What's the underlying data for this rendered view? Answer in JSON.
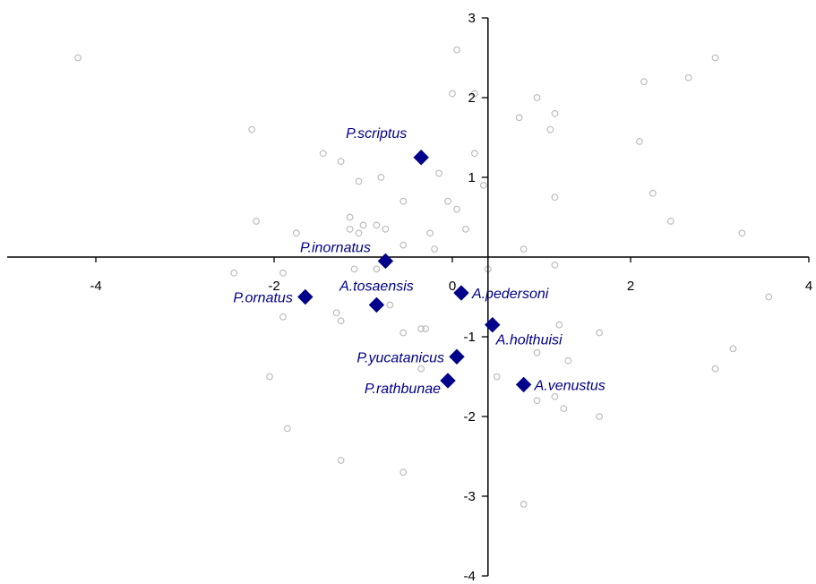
{
  "chart_data": {
    "type": "scatter",
    "title": "",
    "xlabel": "",
    "ylabel": "",
    "xlim": [
      -5,
      4
    ],
    "ylim": [
      -4,
      3
    ],
    "x_ticks": [
      -4,
      -2,
      0,
      2,
      4
    ],
    "y_ticks": [
      -4,
      -3,
      -2,
      -1,
      1,
      2,
      3
    ],
    "x_tick_labels": [
      "-4",
      "-2",
      "0",
      "2",
      "4"
    ],
    "y_tick_labels": [
      "-4",
      "-3",
      "-2",
      "-1",
      "1",
      "2",
      "3"
    ],
    "grid": false,
    "colors": {
      "background_points": "#bdbdbd",
      "highlight": "#00008b",
      "axes": "#000000"
    },
    "background_series": {
      "marker": "open-circle",
      "points": [
        [
          -4.2,
          2.5
        ],
        [
          0.05,
          2.6
        ],
        [
          2.95,
          2.5
        ],
        [
          2.65,
          2.25
        ],
        [
          2.15,
          2.2
        ],
        [
          0.0,
          2.05
        ],
        [
          0.25,
          2.05
        ],
        [
          0.95,
          2.0
        ],
        [
          0.75,
          1.75
        ],
        [
          1.15,
          1.8
        ],
        [
          1.1,
          1.6
        ],
        [
          -2.25,
          1.6
        ],
        [
          2.1,
          1.45
        ],
        [
          -1.45,
          1.3
        ],
        [
          0.25,
          1.3
        ],
        [
          -1.25,
          1.2
        ],
        [
          -0.15,
          1.05
        ],
        [
          -1.05,
          0.95
        ],
        [
          -0.8,
          1.0
        ],
        [
          0.35,
          0.9
        ],
        [
          2.25,
          0.8
        ],
        [
          1.15,
          0.75
        ],
        [
          -0.55,
          0.7
        ],
        [
          -0.05,
          0.7
        ],
        [
          0.05,
          0.6
        ],
        [
          -1.15,
          0.5
        ],
        [
          2.45,
          0.45
        ],
        [
          -2.2,
          0.45
        ],
        [
          -1.0,
          0.4
        ],
        [
          -0.85,
          0.4
        ],
        [
          -1.15,
          0.35
        ],
        [
          -0.75,
          0.35
        ],
        [
          0.15,
          0.35
        ],
        [
          -1.75,
          0.3
        ],
        [
          -0.25,
          0.3
        ],
        [
          3.25,
          0.3
        ],
        [
          -1.05,
          0.3
        ],
        [
          0.8,
          0.1
        ],
        [
          -0.55,
          0.15
        ],
        [
          -0.2,
          0.1
        ],
        [
          -2.45,
          -0.2
        ],
        [
          -1.9,
          -0.2
        ],
        [
          -1.1,
          -0.15
        ],
        [
          -0.85,
          -0.15
        ],
        [
          1.15,
          -0.1
        ],
        [
          0.4,
          -0.15
        ],
        [
          3.55,
          -0.5
        ],
        [
          -1.3,
          -0.7
        ],
        [
          -1.9,
          -0.75
        ],
        [
          -0.7,
          -0.6
        ],
        [
          -1.25,
          -0.8
        ],
        [
          -0.3,
          -0.9
        ],
        [
          -0.35,
          -0.9
        ],
        [
          1.2,
          -0.85
        ],
        [
          1.65,
          -0.95
        ],
        [
          -0.55,
          -0.95
        ],
        [
          0.95,
          -1.2
        ],
        [
          3.15,
          -1.15
        ],
        [
          -0.35,
          -1.4
        ],
        [
          1.3,
          -1.3
        ],
        [
          2.95,
          -1.4
        ],
        [
          0.5,
          -1.5
        ],
        [
          -2.05,
          -1.5
        ],
        [
          1.15,
          -1.75
        ],
        [
          0.95,
          -1.8
        ],
        [
          1.25,
          -1.9
        ],
        [
          1.65,
          -2.0
        ],
        [
          -1.85,
          -2.15
        ],
        [
          -1.25,
          -2.55
        ],
        [
          -0.55,
          -2.7
        ],
        [
          0.8,
          -3.1
        ]
      ]
    },
    "species_series": {
      "marker": "filled-diamond",
      "points": [
        {
          "label": "P.scriptus",
          "x": -0.35,
          "y": 1.25,
          "anchor": "above-left"
        },
        {
          "label": "P.inornatus",
          "x": -0.75,
          "y": -0.05,
          "anchor": "above-left"
        },
        {
          "label": "P.ornatus",
          "x": -1.65,
          "y": -0.5,
          "anchor": "left"
        },
        {
          "label": "A.tosaensis",
          "x": -0.85,
          "y": -0.6,
          "anchor": "above"
        },
        {
          "label": "A.pedersoni",
          "x": 0.1,
          "y": -0.45,
          "anchor": "right"
        },
        {
          "label": "A.holthuisi",
          "x": 0.45,
          "y": -0.85,
          "anchor": "below-right"
        },
        {
          "label": "P.yucatanicus",
          "x": 0.05,
          "y": -1.25,
          "anchor": "left"
        },
        {
          "label": "P.rathbunae",
          "x": -0.05,
          "y": -1.55,
          "anchor": "below-left"
        },
        {
          "label": "A.venustus",
          "x": 0.8,
          "y": -1.6,
          "anchor": "right"
        }
      ]
    }
  }
}
